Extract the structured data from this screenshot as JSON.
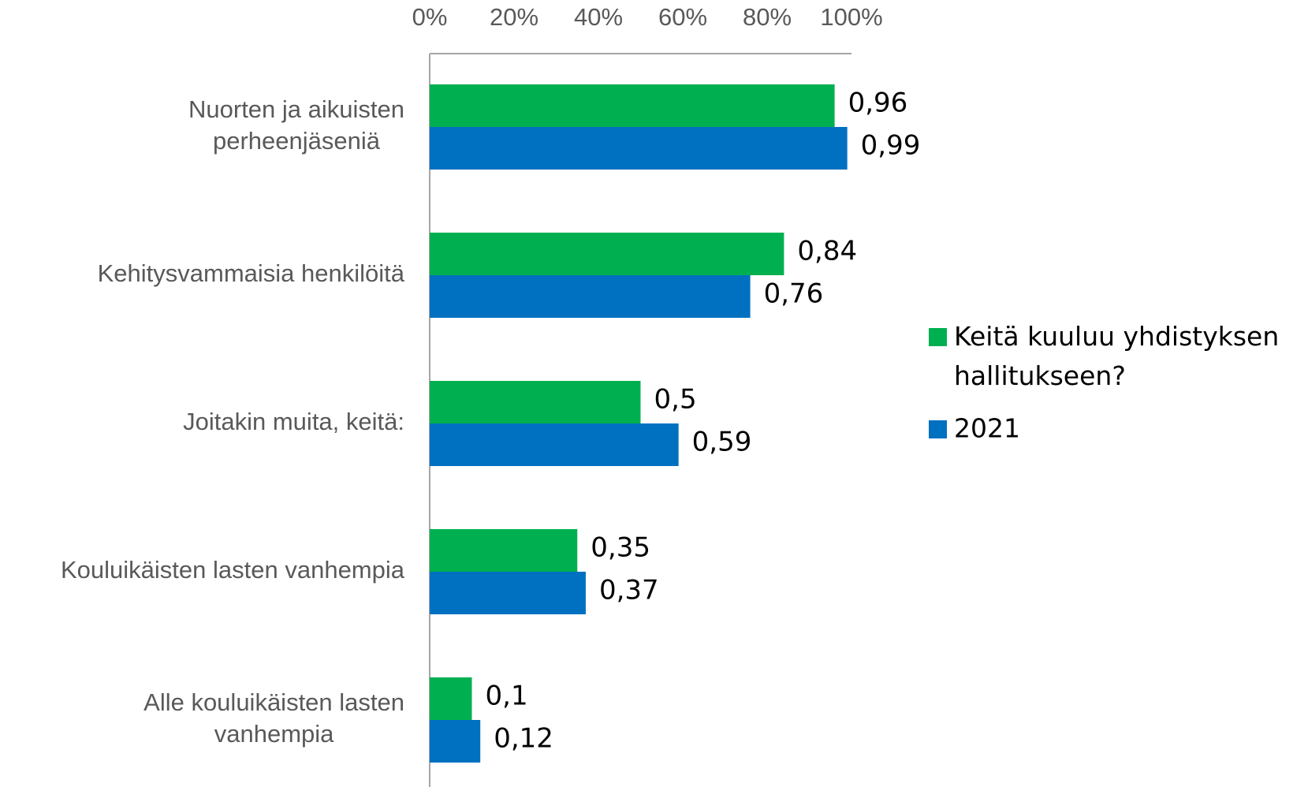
{
  "chart_data": {
    "type": "bar",
    "orientation": "horizontal",
    "categories": [
      "Nuorten ja aikuisten perheenjäseniä",
      "Kehitysvammaisia henkilöitä",
      "Joitakin muita, keitä:",
      "Kouluikäisten lasten vanhempia",
      "Alle kouluikäisten lasten vanhempia"
    ],
    "series": [
      {
        "name": "Keitä kuuluu yhdistyksen hallitukseen?",
        "color": "#00b050",
        "values": [
          0.96,
          0.84,
          0.5,
          0.35,
          0.1
        ],
        "value_labels": [
          "0,96",
          "0,84",
          "0,5",
          "0,35",
          "0,1"
        ]
      },
      {
        "name": "2021",
        "color": "#0070c0",
        "values": [
          0.99,
          0.76,
          0.59,
          0.37,
          0.12
        ],
        "value_labels": [
          "0,99",
          "0,76",
          "0,59",
          "0,37",
          "0,12"
        ]
      }
    ],
    "xlim": [
      0,
      1
    ],
    "xticks": [
      {
        "value": 0,
        "label": "0%"
      },
      {
        "value": 0.2,
        "label": "20%"
      },
      {
        "value": 0.4,
        "label": "40%"
      },
      {
        "value": 0.6,
        "label": "60%"
      },
      {
        "value": 0.8,
        "label": "80%"
      },
      {
        "value": 1,
        "label": "100%"
      }
    ],
    "legend": "right"
  }
}
